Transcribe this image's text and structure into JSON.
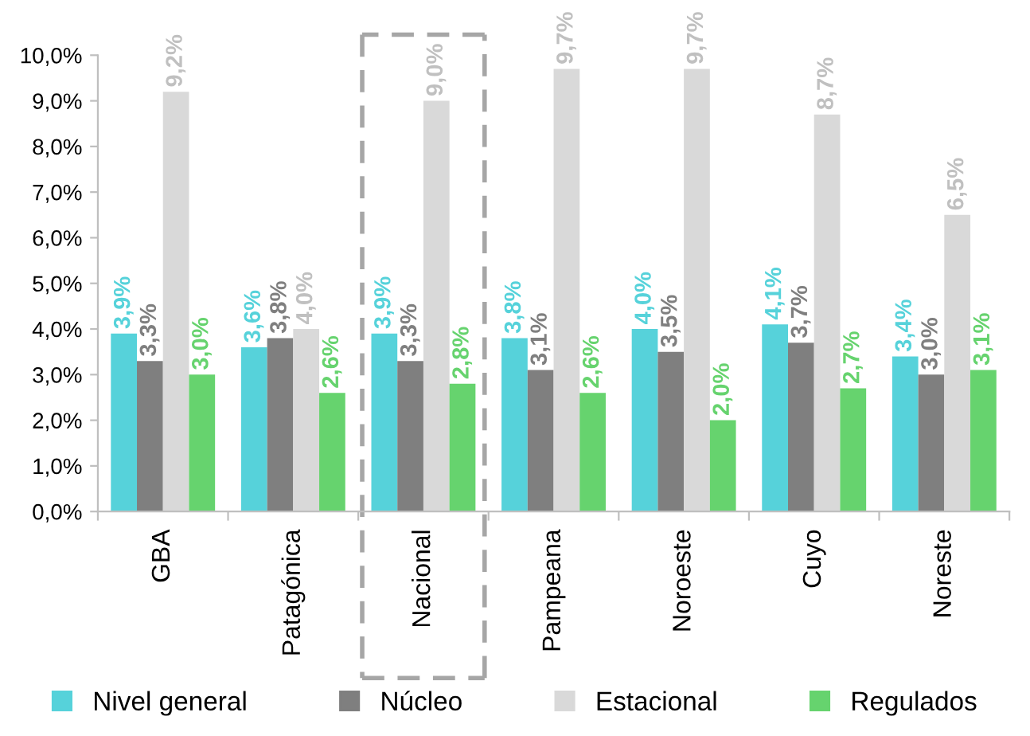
{
  "chart_data": {
    "type": "bar",
    "categories": [
      "GBA",
      "Patagónica",
      "Nacional",
      "Pampeana",
      "Noroeste",
      "Cuyo",
      "Noreste"
    ],
    "series": [
      {
        "name": "Nivel general",
        "color": "#56d2da",
        "values": [
          3.9,
          3.6,
          3.9,
          3.8,
          4.0,
          4.1,
          3.4
        ],
        "value_labels": [
          "3,9%",
          "3,6%",
          "3,9%",
          "3,8%",
          "4,0%",
          "4,1%",
          "3,4%"
        ]
      },
      {
        "name": "Núcleo",
        "color": "#7f7f7f",
        "values": [
          3.3,
          3.8,
          3.3,
          3.1,
          3.5,
          3.7,
          3.0
        ],
        "value_labels": [
          "3,3%",
          "3,8%",
          "3,3%",
          "3,1%",
          "3,5%",
          "3,7%",
          "3,0%"
        ]
      },
      {
        "name": "Estacional",
        "color": "#d9d9d9",
        "values": [
          9.2,
          4.0,
          9.0,
          9.7,
          9.7,
          8.7,
          6.5
        ],
        "value_labels": [
          "9,2%",
          "4,0%",
          "9,0%",
          "9,7%",
          "9,7%",
          "8,7%",
          "6,5%"
        ]
      },
      {
        "name": "Regulados",
        "color": "#66d36e",
        "values": [
          3.0,
          2.6,
          2.8,
          2.6,
          2.0,
          2.7,
          3.1
        ],
        "value_labels": [
          "3,0%",
          "2,6%",
          "2,8%",
          "2,6%",
          "2,0%",
          "2,7%",
          "3,1%"
        ]
      }
    ],
    "ylim": [
      0,
      10
    ],
    "yticks": [
      {
        "value": 0,
        "label": "0,0%"
      },
      {
        "value": 1,
        "label": "1,0%"
      },
      {
        "value": 2,
        "label": "2,0%"
      },
      {
        "value": 3,
        "label": "3,0%"
      },
      {
        "value": 4,
        "label": "4,0%"
      },
      {
        "value": 5,
        "label": "5,0%"
      },
      {
        "value": 6,
        "label": "6,0%"
      },
      {
        "value": 7,
        "label": "7,0%"
      },
      {
        "value": 8,
        "label": "8,0%"
      },
      {
        "value": 9,
        "label": "9,0%"
      },
      {
        "value": 10,
        "label": "10,0%"
      }
    ],
    "grid": false,
    "legend": "bottom"
  }
}
